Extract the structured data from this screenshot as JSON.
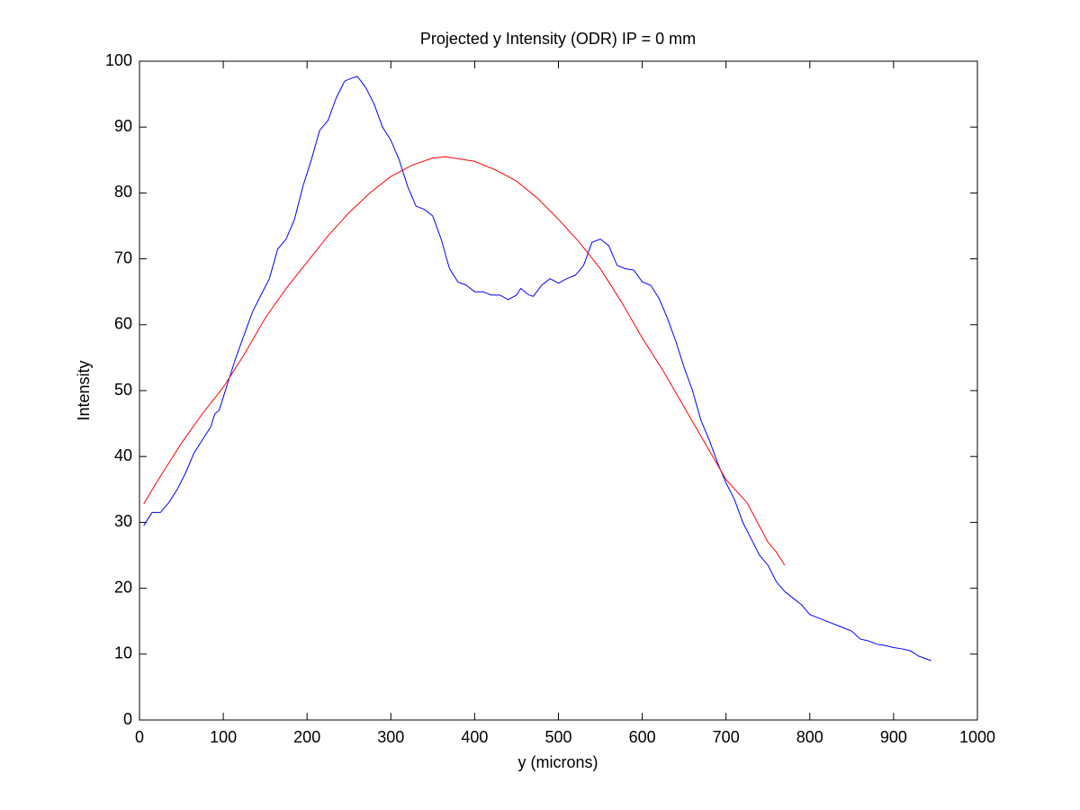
{
  "chart_data": {
    "type": "line",
    "title": "Projected y Intensity (ODR) IP = 0 mm",
    "xlabel": "y (microns)",
    "ylabel": "Intensity",
    "xlim": [
      0,
      1000
    ],
    "ylim": [
      0,
      100
    ],
    "xticks": [
      0,
      100,
      200,
      300,
      400,
      500,
      600,
      700,
      800,
      900,
      1000
    ],
    "yticks": [
      0,
      10,
      20,
      30,
      40,
      50,
      60,
      70,
      80,
      90,
      100
    ],
    "grid": false,
    "series": [
      {
        "color": "#0000ff",
        "x": [
          5,
          15,
          25,
          35,
          45,
          55,
          65,
          75,
          85,
          90,
          95,
          105,
          115,
          125,
          135,
          145,
          155,
          165,
          175,
          185,
          195,
          205,
          215,
          225,
          235,
          245,
          255,
          260,
          270,
          280,
          290,
          300,
          310,
          320,
          330,
          340,
          350,
          360,
          370,
          380,
          390,
          400,
          410,
          420,
          430,
          440,
          450,
          455,
          465,
          470,
          480,
          490,
          500,
          510,
          520,
          530,
          540,
          550,
          560,
          570,
          580,
          590,
          600,
          610,
          620,
          630,
          640,
          650,
          660,
          670,
          680,
          690,
          700,
          710,
          720,
          730,
          740,
          750,
          760,
          770,
          780,
          790,
          800,
          810,
          820,
          830,
          840,
          850,
          860,
          870,
          880,
          890,
          900,
          910,
          920,
          930,
          945
        ],
        "values": [
          29.5,
          31.5,
          31.5,
          33,
          35,
          37.5,
          40.5,
          42.5,
          44.5,
          46.5,
          47,
          51,
          55,
          58.5,
          62,
          64.5,
          67,
          71.5,
          73,
          76,
          81,
          85,
          89.5,
          91,
          94.5,
          97,
          97.5,
          97.7,
          96,
          93.5,
          90,
          88,
          85,
          81,
          78,
          77.5,
          76.5,
          73,
          68.5,
          66.5,
          66,
          65,
          65,
          64.5,
          64.5,
          63.8,
          64.5,
          65.5,
          64.5,
          64.3,
          66,
          67,
          66.3,
          67,
          67.5,
          69,
          72.5,
          73,
          72,
          69,
          68.5,
          68.3,
          66.5,
          66,
          64,
          61,
          57.5,
          53.5,
          50,
          45.5,
          42.5,
          39,
          36,
          33.5,
          30,
          27.5,
          25,
          23.5,
          21,
          19.5,
          18.5,
          17.5,
          16,
          15.5,
          15,
          14.5,
          14,
          13.5,
          12.3,
          12,
          11.5,
          11.3,
          11,
          10.8,
          10.5,
          9.7,
          9
        ]
      },
      {
        "color": "#ff0000",
        "x": [
          5,
          25,
          50,
          75,
          100,
          125,
          150,
          175,
          200,
          225,
          250,
          275,
          300,
          325,
          350,
          365,
          400,
          425,
          450,
          475,
          500,
          525,
          550,
          575,
          600,
          625,
          650,
          675,
          700,
          725,
          750,
          760,
          770
        ],
        "values": [
          32.8,
          37,
          42,
          46.5,
          50.5,
          55.5,
          61,
          65.5,
          69.5,
          73.5,
          77,
          80,
          82.5,
          84.2,
          85.3,
          85.5,
          84.8,
          83.5,
          81.8,
          79.2,
          76,
          72.5,
          68.5,
          63.5,
          58,
          53,
          47.5,
          42,
          36.5,
          33,
          27,
          25.5,
          23.5
        ]
      }
    ]
  }
}
